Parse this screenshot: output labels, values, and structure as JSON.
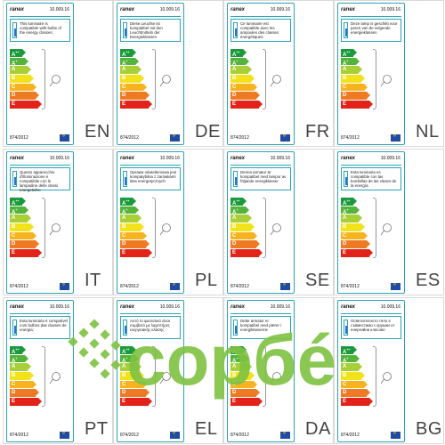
{
  "labels": [
    {
      "brand": "ranex",
      "code": "10.009.16",
      "text": "This luminaire is compatible with bulbs of the energy classes:",
      "regulation": "874/2012",
      "lang": "EN"
    },
    {
      "brand": "ranex",
      "code": "10.009.16",
      "text": "Diese Leuchte ist kompatibel mit den Leuchtmitteln der Energieklassen",
      "regulation": "874/2012",
      "lang": "DE"
    },
    {
      "brand": "ranex",
      "code": "10.009.16",
      "text": "Ce luminaire est compatible avec les ampoules des classes énergétiques:",
      "regulation": "874/2012",
      "lang": "FR"
    },
    {
      "brand": "ranex",
      "code": "10.009.16",
      "text": "Deze lamp is geschikt voor peren van de volgende energieklassen",
      "regulation": "874/2012",
      "lang": "NL"
    },
    {
      "brand": "ranex",
      "code": "10.009.16",
      "text": "Questo apparecchio d'illuminazione è compatibile con le lampadine delle classi energetiche:",
      "regulation": "874/2012",
      "lang": "IT"
    },
    {
      "brand": "ranex",
      "code": "10.009.16",
      "text": "Oprawa oświetleniowa jest kompatybilna z żarówkami klas energetycznych",
      "regulation": "874/2012",
      "lang": "PL"
    },
    {
      "brand": "ranex",
      "code": "10.009.16",
      "text": "Denna armatur är kompatibel med lampor av följande energiklasser",
      "regulation": "874/2012",
      "lang": "SE"
    },
    {
      "brand": "ranex",
      "code": "10.009.16",
      "text": "Esta luminaria es compatible con las bombillas de las clases de la energía",
      "regulation": "874/2012",
      "lang": "ES"
    },
    {
      "brand": "ranex",
      "code": "10.009.16",
      "text": "Esta luminária é compatível com bulbos das classes de energia:",
      "regulation": "874/2012",
      "lang": "PT"
    },
    {
      "brand": "ranex",
      "code": "10.009.16",
      "text": "Αυτό το φωτιστικό είναι συμβατό με λαμπτήρες ενεργειακής κλάσης",
      "regulation": "874/2012",
      "lang": "EL"
    },
    {
      "brand": "ranex",
      "code": "10.009.16",
      "text": "Dette armatur er kompatibel med pærer i energiklasserne",
      "regulation": "874/2012",
      "lang": "DA"
    },
    {
      "brand": "ranex",
      "code": "10.009.16",
      "text": "Осветителното тяло е съвместимо с крушки от енергийни класове",
      "regulation": "874/2012",
      "lang": "BG"
    }
  ],
  "energy_classes": [
    {
      "label": "A",
      "sup": "++",
      "color": "#1a9a3c"
    },
    {
      "label": "A",
      "sup": "+",
      "color": "#53b33a"
    },
    {
      "label": "A",
      "sup": "",
      "color": "#a8cf38"
    },
    {
      "label": "B",
      "sup": "",
      "color": "#f1e21c"
    },
    {
      "label": "C",
      "sup": "",
      "color": "#f7b31f"
    },
    {
      "label": "D",
      "sup": "",
      "color": "#ef7a24"
    },
    {
      "label": "E",
      "sup": "",
      "color": "#e2231a"
    }
  ],
  "watermark": {
    "text": "copбé",
    "color": "#7fc241"
  }
}
